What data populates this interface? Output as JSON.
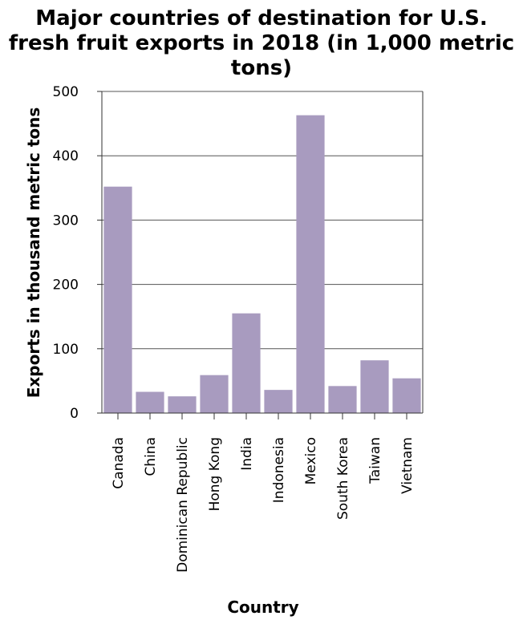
{
  "chart_data": {
    "type": "bar",
    "title_lines": [
      "Major countries of destination for U.S.",
      "fresh fruit exports in 2018 (in 1,000 metric",
      "tons)"
    ],
    "title": "Major countries of destination for U.S. fresh fruit exports in 2018 (in 1,000 metric tons)",
    "xlabel": "Country",
    "ylabel": "Exports in thousand metric tons",
    "categories": [
      "Canada",
      "China",
      "Dominican Republic",
      "Hong Kong",
      "India",
      "Indonesia",
      "Mexico",
      "South Korea",
      "Taiwan",
      "Vietnam"
    ],
    "values": [
      352,
      33,
      26,
      59,
      155,
      36,
      463,
      42,
      82,
      54
    ],
    "ylim": [
      0,
      500
    ],
    "yticks": [
      0,
      100,
      200,
      300,
      400,
      500
    ],
    "grid": "horizontal",
    "bar_color": "#a89bbf",
    "legend": "none"
  }
}
